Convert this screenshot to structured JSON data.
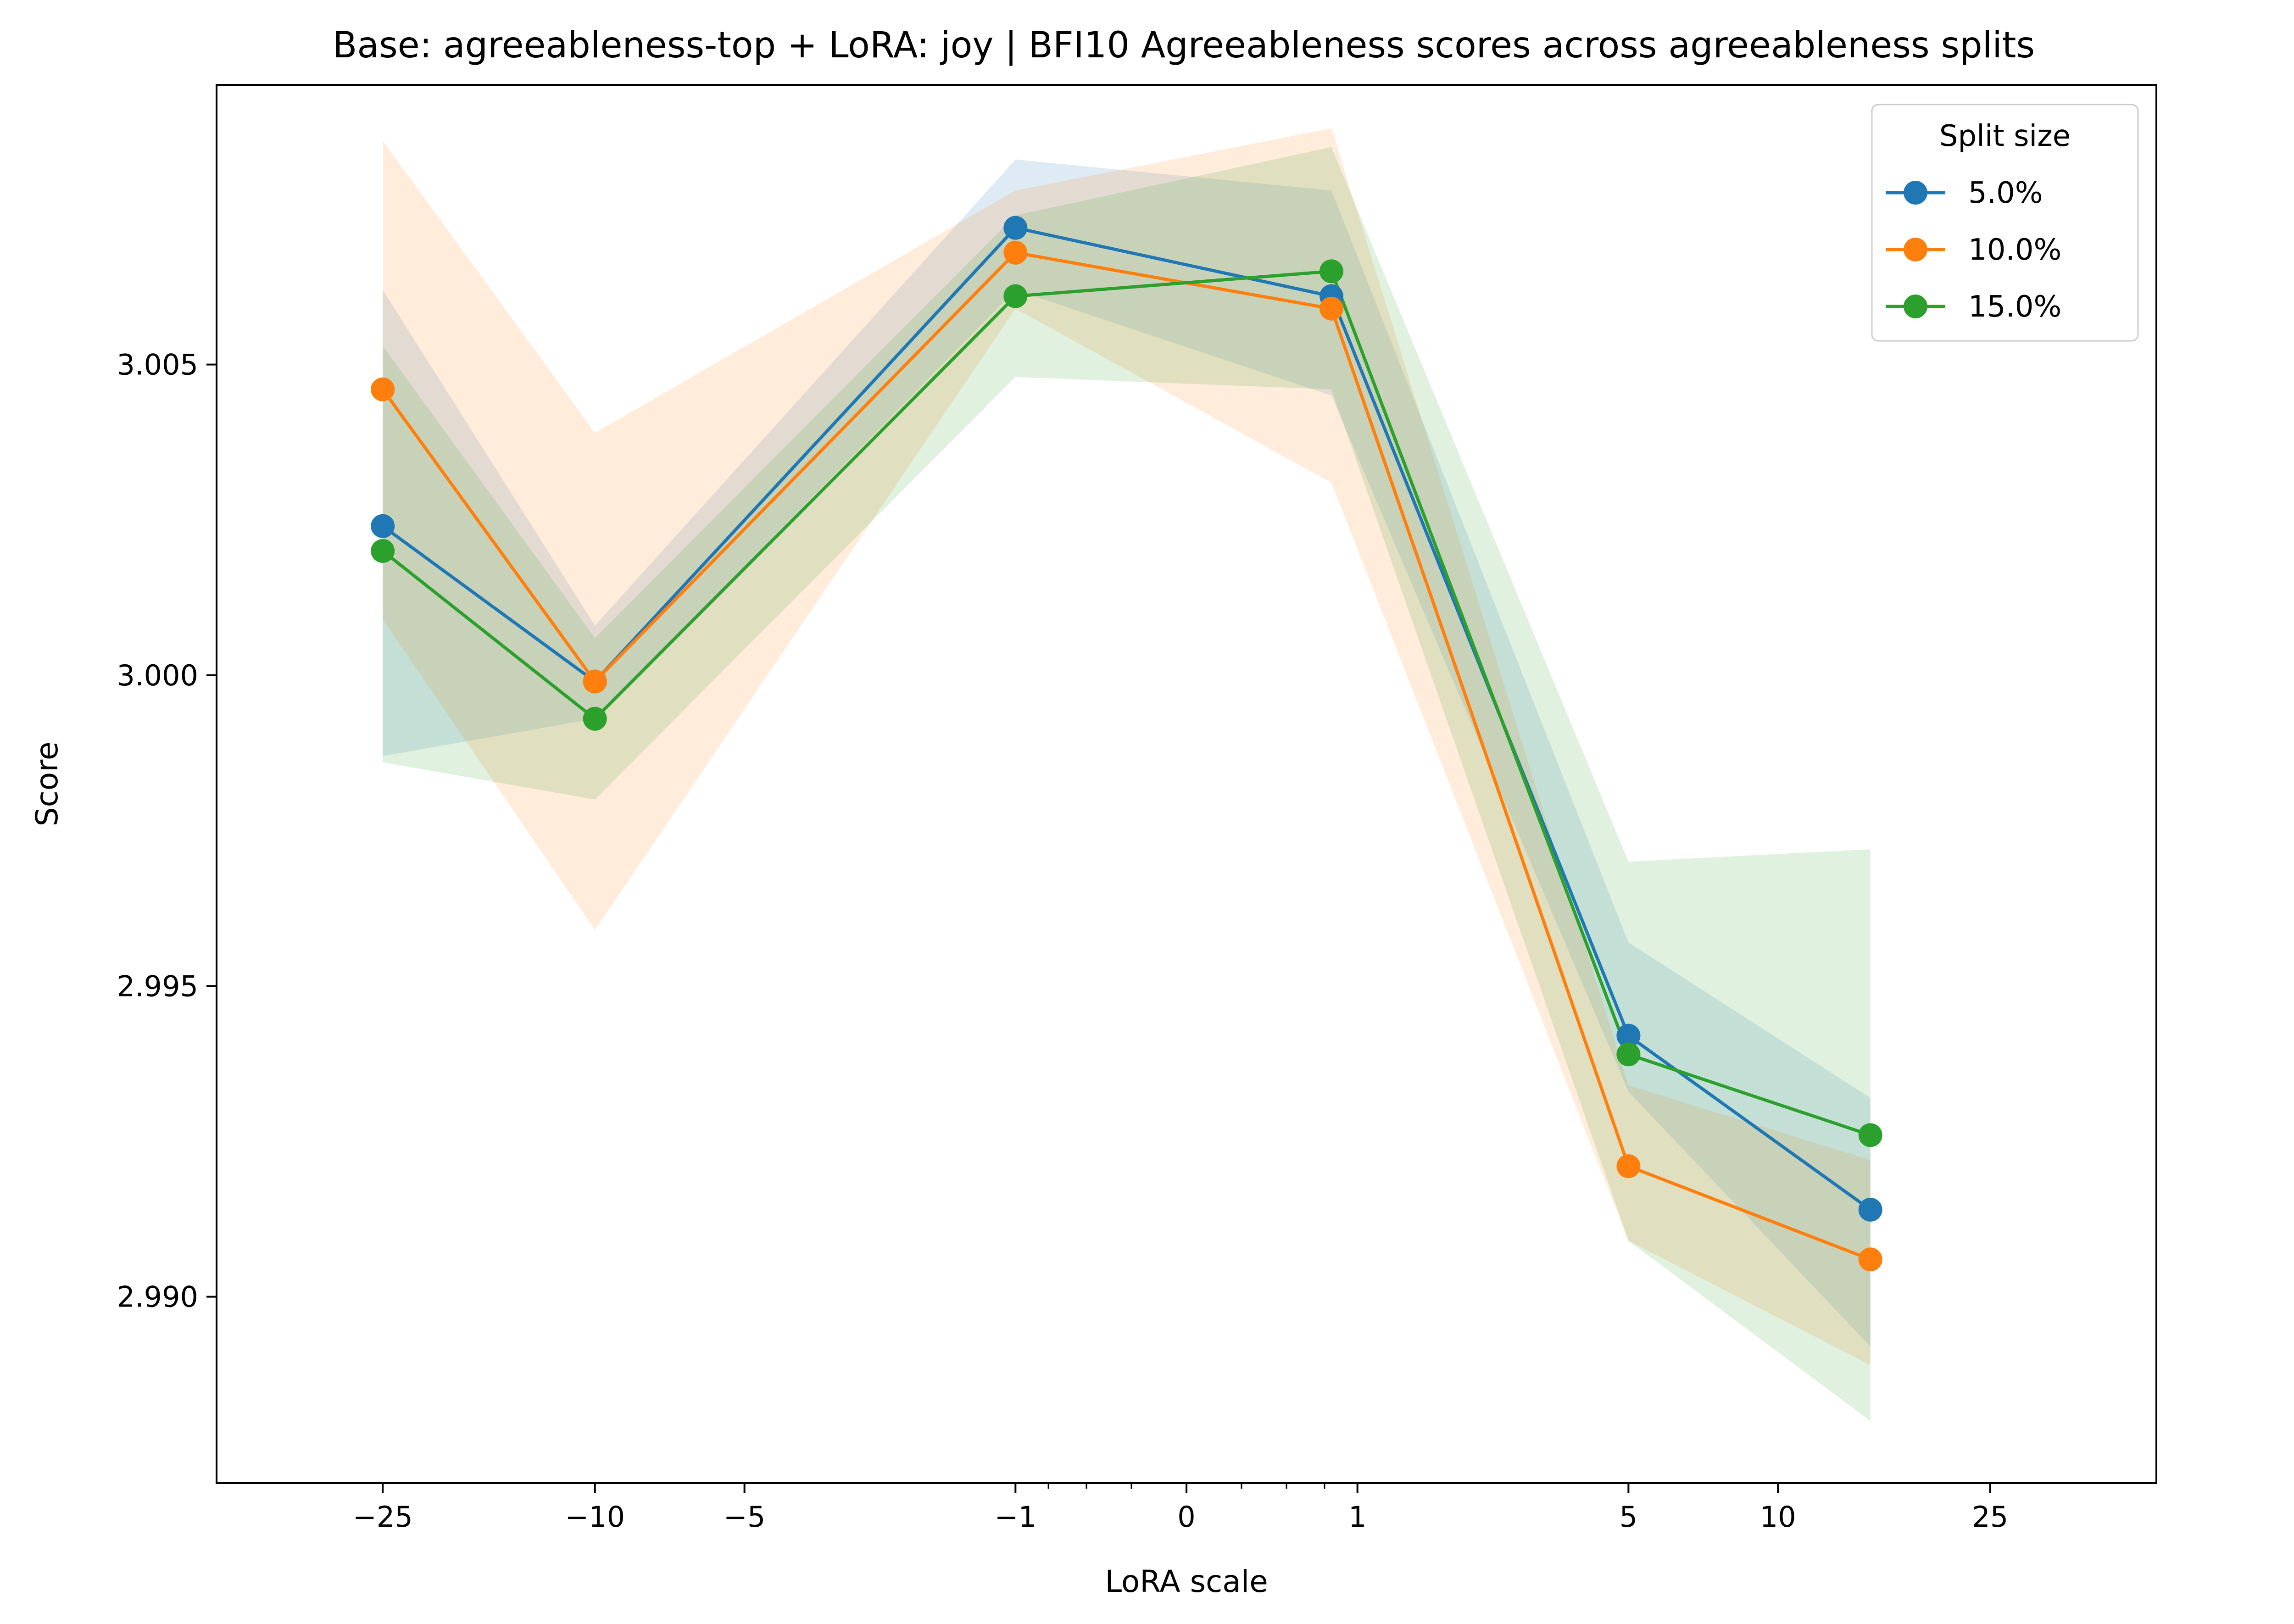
{
  "chart_data": {
    "type": "line",
    "title": "Base: agreeableness-top + LoRA: joy | BFI10 Agreeableness scores across agreeableness splits",
    "xlabel": "LoRA scale",
    "ylabel": "Score",
    "x_scale": "symlog",
    "x": [
      -25,
      -10,
      -1,
      0.8,
      5,
      15
    ],
    "xlim": [
      -50,
      50
    ],
    "ylim": [
      2.987,
      3.0095
    ],
    "x_ticks": [
      {
        "value": -25,
        "label": "−25"
      },
      {
        "value": -10,
        "label": "−10"
      },
      {
        "value": -5,
        "label": "−5"
      },
      {
        "value": -1,
        "label": "−1"
      },
      {
        "value": 0,
        "label": "0"
      },
      {
        "value": 1,
        "label": "1"
      },
      {
        "value": 5,
        "label": "5"
      },
      {
        "value": 10,
        "label": "10"
      },
      {
        "value": 25,
        "label": "25"
      }
    ],
    "x_minor_ticks": [
      -0.75,
      -0.5,
      -0.25,
      0.25,
      0.5,
      0.75
    ],
    "y_ticks": [
      {
        "value": 2.99,
        "label": "2.990"
      },
      {
        "value": 2.995,
        "label": "2.995"
      },
      {
        "value": 3.0,
        "label": "3.000"
      },
      {
        "value": 3.005,
        "label": "3.005"
      }
    ],
    "grid": false,
    "legend": {
      "title": "Split size",
      "position": "top-right"
    },
    "series": [
      {
        "name": "5.0%",
        "color": "#1f77b4",
        "values": [
          3.0024,
          2.9999,
          3.0072,
          3.0061,
          2.9942,
          2.9914
        ],
        "band_low": [
          2.9987,
          2.9993,
          3.0062,
          3.0045,
          2.9933,
          2.9892
        ],
        "band_high": [
          3.0062,
          3.0008,
          3.0083,
          3.0078,
          2.9957,
          2.9932
        ]
      },
      {
        "name": "10.0%",
        "color": "#ff7f0e",
        "values": [
          3.0046,
          2.9999,
          3.0068,
          3.0059,
          2.9921,
          2.9906
        ],
        "band_low": [
          3.0009,
          2.9959,
          3.0059,
          3.0031,
          2.9909,
          2.9889
        ],
        "band_high": [
          3.0086,
          3.0039,
          3.0078,
          3.0088,
          2.9934,
          2.9922
        ]
      },
      {
        "name": "15.0%",
        "color": "#2ca02c",
        "values": [
          3.002,
          2.9993,
          3.0061,
          3.0065,
          2.9939,
          2.9926
        ],
        "band_low": [
          2.9986,
          2.998,
          3.0048,
          3.0046,
          2.9909,
          2.988
        ],
        "band_high": [
          3.0053,
          3.0006,
          3.0074,
          3.0085,
          2.997,
          2.9972
        ]
      }
    ]
  }
}
